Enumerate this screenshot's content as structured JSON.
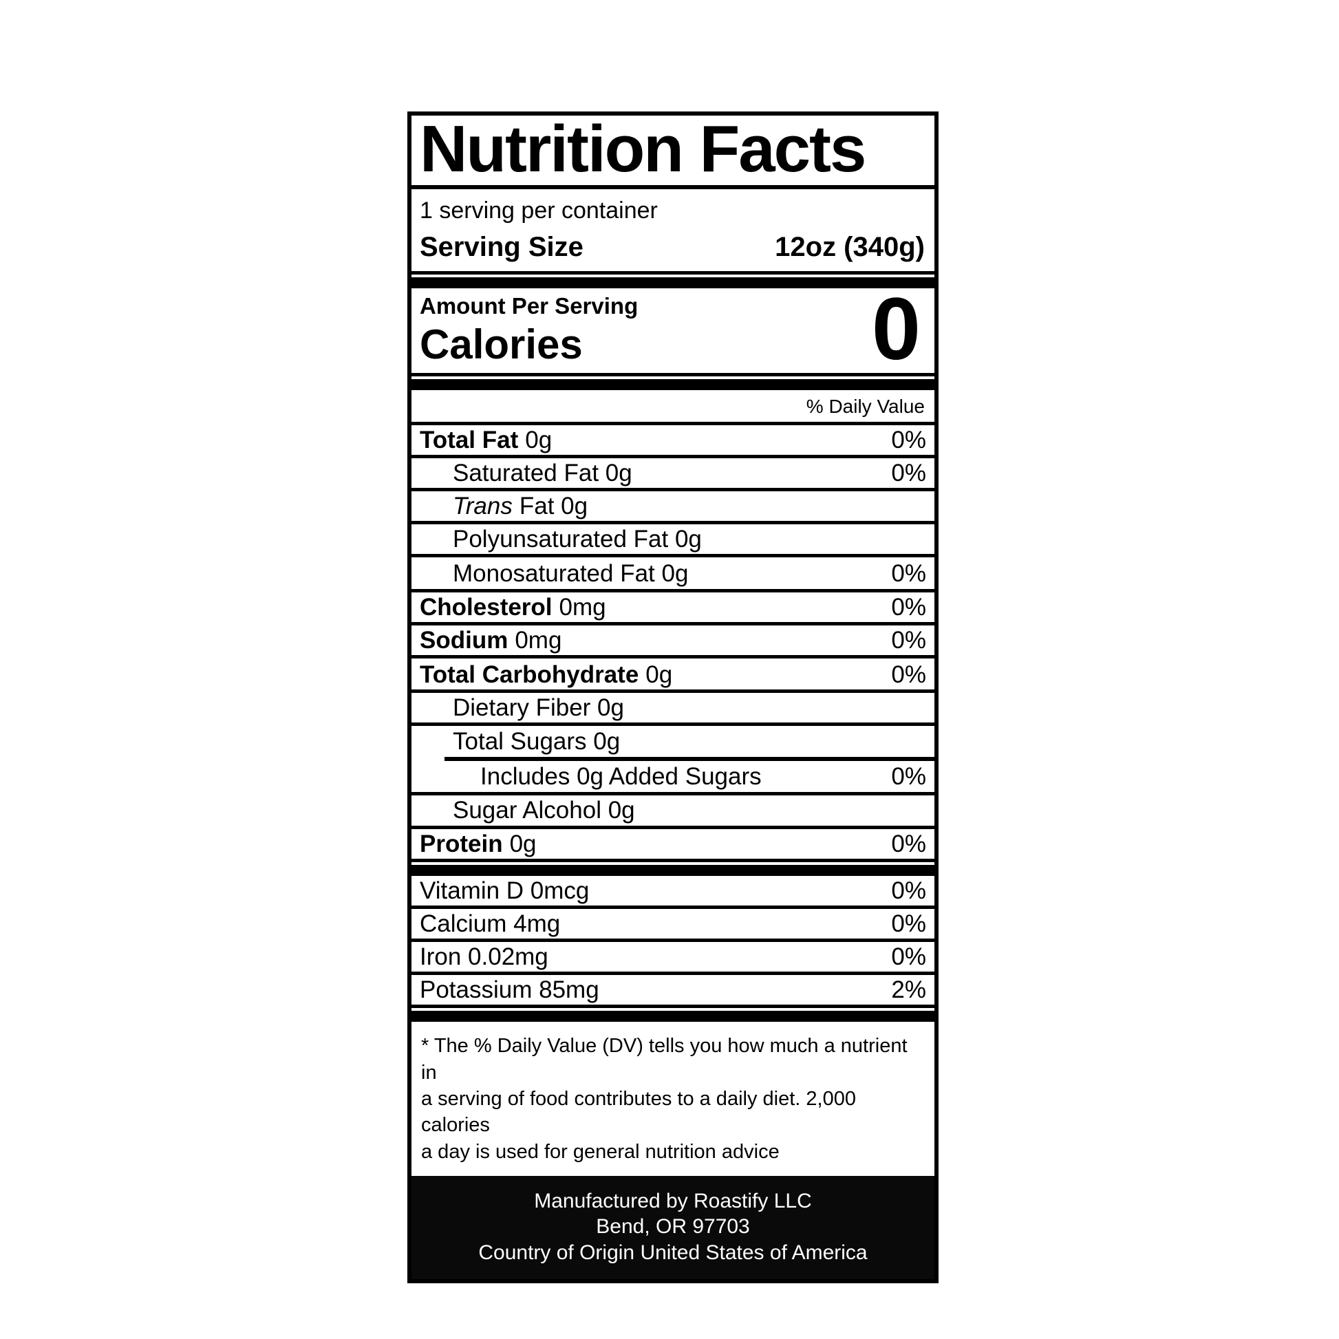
{
  "label": {
    "title": "Nutrition Facts",
    "servings_per_container": "1 serving per container",
    "serving_size": {
      "label": "Serving Size",
      "value": "12oz (340g)"
    },
    "amount_per_serving": "Amount Per Serving",
    "calories": {
      "label": "Calories",
      "value": "0"
    },
    "daily_value_header": "% Daily Value",
    "nutrient_rows": [
      {
        "parts": [
          {
            "text": "Total Fat",
            "bold": true
          },
          {
            "text": "0g"
          }
        ],
        "pct": "0%"
      },
      {
        "parts": [
          {
            "text": "Saturated Fat 0g"
          }
        ],
        "pct": "0%",
        "indent": 1
      },
      {
        "parts": [
          {
            "text": "Trans",
            "italic": true
          },
          {
            "text": "Fat 0g"
          }
        ],
        "indent": 1
      },
      {
        "parts": [
          {
            "text": "Polyunsaturated Fat 0g"
          }
        ],
        "indent": 1
      },
      {
        "parts": [
          {
            "text": "Monosaturated Fat 0g"
          }
        ],
        "pct": "0%",
        "indent": 1,
        "pct_top": true
      },
      {
        "parts": [
          {
            "text": "Cholesterol",
            "bold": true
          },
          {
            "text": "0mg"
          }
        ],
        "pct": "0%"
      },
      {
        "parts": [
          {
            "text": "Sodium",
            "bold": true
          },
          {
            "text": "0mg"
          }
        ],
        "pct": "0%"
      },
      {
        "parts": [
          {
            "text": "Total Carbohydrate",
            "bold": true
          },
          {
            "text": "0g"
          }
        ],
        "pct": "0%",
        "pct_top": true
      },
      {
        "parts": [
          {
            "text": "Dietary Fiber 0g"
          }
        ],
        "indent": 1
      },
      {
        "group": [
          {
            "parts": [
              {
                "text": "Total Sugars 0g"
              }
            ],
            "indent": 1
          },
          {
            "parts": [
              {
                "text": "Includes 0g Added Sugars"
              }
            ],
            "pct": "0%",
            "indent": 2,
            "divider_above": true
          }
        ]
      },
      {
        "parts": [
          {
            "text": "Sugar Alcohol 0g"
          }
        ],
        "indent": 1
      },
      {
        "parts": [
          {
            "text": "Protein",
            "bold": true
          },
          {
            "text": "0g"
          }
        ],
        "pct": "0%"
      }
    ],
    "vitamin_rows": [
      {
        "parts": [
          {
            "text": "Vitamin D 0mcg"
          }
        ],
        "pct": "0%"
      },
      {
        "parts": [
          {
            "text": "Calcium 4mg"
          }
        ],
        "pct": "0%"
      },
      {
        "parts": [
          {
            "text": "Iron 0.02mg"
          }
        ],
        "pct": "0%"
      },
      {
        "parts": [
          {
            "text": "Potassium 85mg"
          }
        ],
        "pct": "2%"
      }
    ],
    "footnote_lines": [
      "* The % Daily Value (DV) tells you how much a nutrient in",
      "a serving of food contributes to a daily diet. 2,000 calories",
      "a day is used for general nutrition advice"
    ],
    "footer_lines": [
      "Manufactured by Roastify LLC",
      "Bend, OR 97703",
      "Country of Origin United States of America"
    ],
    "colors": {
      "ink": "#000000",
      "paper": "#ffffff",
      "footer_bg": "#0a0a0a",
      "footer_text": "#ffffff"
    }
  }
}
